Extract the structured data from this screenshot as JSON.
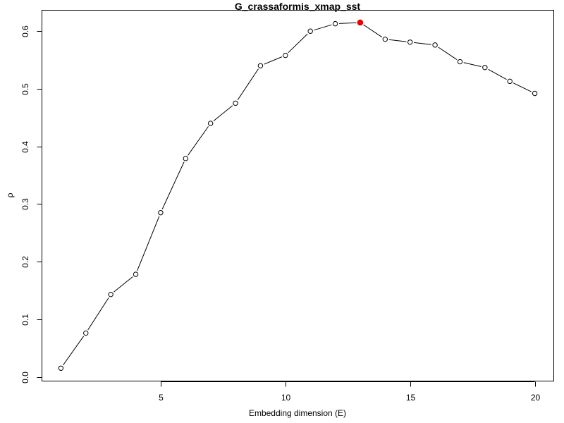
{
  "chart_data": {
    "type": "line",
    "title": "G_crassaformis_xmap_sst",
    "xlabel": "Embedding dimension (E)",
    "ylabel": "ρ",
    "xlim": [
      0.24,
      20.76
    ],
    "ylim": [
      -0.0073,
      0.6364
    ],
    "x_ticks": [
      5,
      10,
      15,
      20
    ],
    "y_ticks": [
      0.0,
      0.1,
      0.2,
      0.3,
      0.4,
      0.5,
      0.6
    ],
    "x_tick_labels": [
      "5",
      "10",
      "15",
      "20"
    ],
    "y_tick_labels": [
      "0.0",
      "0.1",
      "0.2",
      "0.3",
      "0.4",
      "0.5",
      "0.6"
    ],
    "grid": false,
    "legend": "none",
    "series": [
      {
        "x": [
          1,
          2,
          3,
          4,
          5,
          6,
          7,
          8,
          9,
          10,
          11,
          12,
          13,
          14,
          15,
          16,
          17,
          18,
          19,
          20
        ],
        "values": [
          0.015,
          0.076,
          0.143,
          0.178,
          0.285,
          0.379,
          0.44,
          0.475,
          0.54,
          0.558,
          0.6,
          0.613,
          0.615,
          0.586,
          0.581,
          0.576,
          0.547,
          0.537,
          0.513,
          0.492
        ],
        "marker": "open-circle",
        "color": "#000000"
      }
    ],
    "highlight": {
      "x": 13,
      "y": 0.615,
      "color": "#ee0000",
      "marker": "filled-circle"
    }
  }
}
